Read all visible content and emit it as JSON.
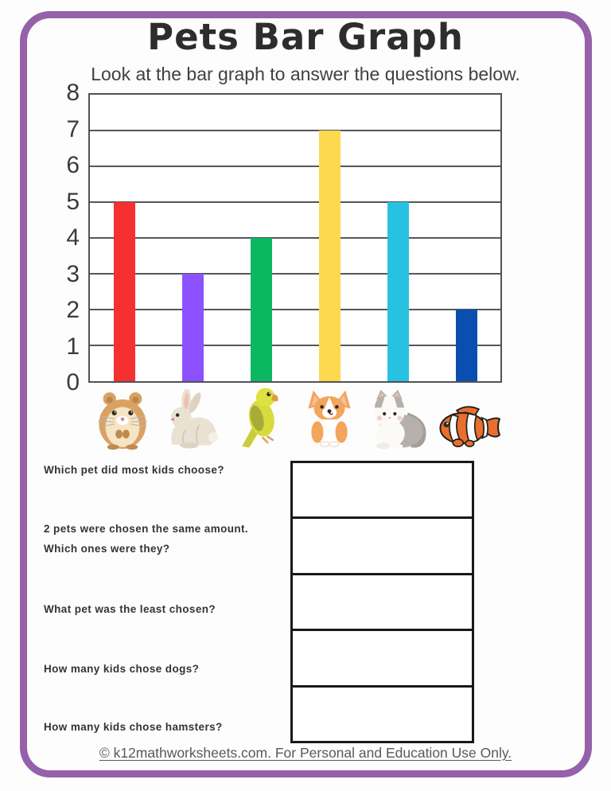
{
  "page": {
    "title": "Pets Bar Graph",
    "subtitle": "Look at the bar graph to answer the questions below.",
    "border_color": "#9561a8",
    "footer_credit": "© k12mathworksheets.com. For Personal and Education Use Only."
  },
  "chart_data": {
    "type": "bar",
    "title": "Pets Bar Graph",
    "categories": [
      "Hamster",
      "Rabbit",
      "Bird",
      "Dog",
      "Cat",
      "Fish"
    ],
    "values": [
      5,
      3,
      4,
      7,
      5,
      2
    ],
    "bar_colors": [
      "#f53030",
      "#8c52ff",
      "#0cb85f",
      "#fcd94f",
      "#27c2e2",
      "#0a4fb0"
    ],
    "category_icons": [
      "hamster-icon",
      "rabbit-icon",
      "parakeet-icon",
      "dog-icon",
      "cat-icon",
      "clownfish-icon"
    ],
    "xlabel": "",
    "ylabel": "",
    "ylim": [
      0,
      8
    ],
    "yticks": [
      0,
      1,
      2,
      3,
      4,
      5,
      6,
      7,
      8
    ],
    "grid": "horizontal",
    "legend": "none"
  },
  "questions": [
    {
      "lines": [
        "Which pet did most kids choose?"
      ]
    },
    {
      "lines": [
        "2 pets were chosen the same amount.",
        "Which ones were they?"
      ]
    },
    {
      "lines": [
        "What pet was the least chosen?"
      ]
    },
    {
      "lines": [
        "How many kids chose dogs?"
      ]
    },
    {
      "lines": [
        "How many kids chose hamsters?"
      ]
    }
  ],
  "answer_boxes": {
    "count": 5,
    "values": [
      "",
      "",
      "",
      "",
      ""
    ]
  }
}
